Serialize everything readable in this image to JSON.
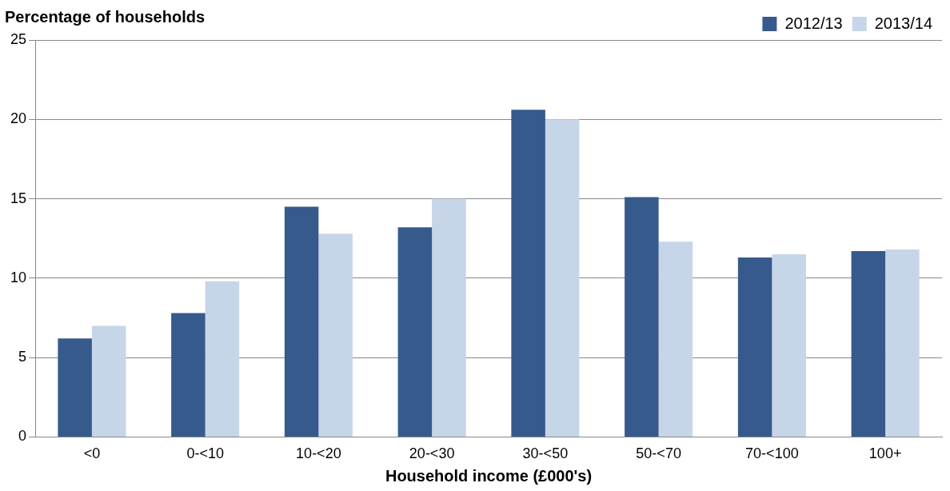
{
  "chart_data": {
    "type": "bar",
    "ylabel": "Percentage of households",
    "xlabel": "Household income (£000's)",
    "categories": [
      "<0",
      "0-<10",
      "10-<20",
      "20-<30",
      "30-<50",
      "50-<70",
      "70-<100",
      "100+"
    ],
    "series": [
      {
        "name": "2012/13",
        "color": "#365a8c",
        "values": [
          6.2,
          7.8,
          14.5,
          13.2,
          20.6,
          15.1,
          11.3,
          11.7
        ]
      },
      {
        "name": "2013/14",
        "color": "#c6d5e8",
        "values": [
          7.0,
          9.8,
          12.8,
          15.0,
          20.0,
          12.3,
          11.5,
          11.8
        ]
      }
    ],
    "ylim": [
      0,
      25
    ],
    "yticks": [
      0,
      5,
      10,
      15,
      20,
      25
    ],
    "grid": "y",
    "legend": "top right"
  }
}
